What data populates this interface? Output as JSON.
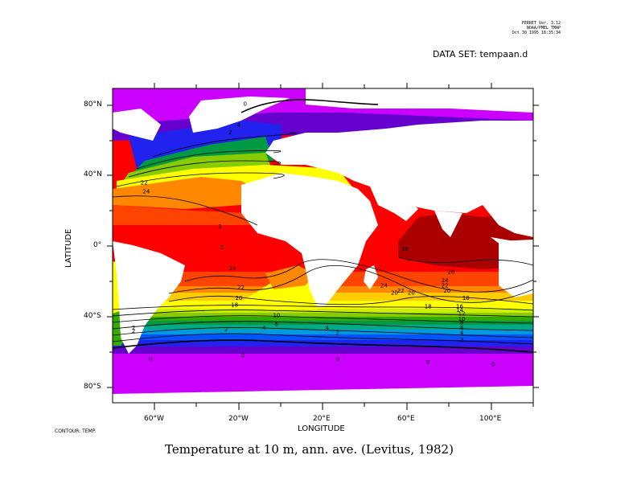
{
  "header": {
    "line1": "FERRET Ver. 3.12",
    "line2": "NOAA/PMEL TMAP",
    "line3": "Oct 30 1995 18:35:34"
  },
  "dataset_label": "DATA SET: tempaan.d",
  "axes": {
    "ylabel": "LATITUDE",
    "xlabel": "LONGITUDE",
    "yticks": [
      "80°N",
      "40°N",
      "0°",
      "40°S",
      "80°S"
    ],
    "xticks": [
      "60°W",
      "20°W",
      "20°E",
      "60°E",
      "100°E"
    ]
  },
  "contour_note": "CONTOUR: TEMP.",
  "title": "Temperature at 10 m, ann. ave. (Levitus, 1982)",
  "map": {
    "lon_range": [
      -80,
      120
    ],
    "lat_range": [
      -90,
      90
    ],
    "land_color": "#ffffff",
    "color_scale": [
      "#cc00ff",
      "#6600cc",
      "#2222ee",
      "#0055ff",
      "#0099dd",
      "#00aa88",
      "#009944",
      "#33aa00",
      "#88cc00",
      "#ccee00",
      "#ffff00",
      "#ffcc00",
      "#ff8800",
      "#ff4400",
      "#ff0000",
      "#aa0000"
    ]
  },
  "contour_labels": [
    {
      "text": "0",
      "lon": -62,
      "lat": -66
    },
    {
      "text": "0",
      "lon": -18,
      "lat": -64
    },
    {
      "text": "0",
      "lon": 27,
      "lat": -66
    },
    {
      "text": "0",
      "lon": 70,
      "lat": -68
    },
    {
      "text": "0",
      "lon": 101,
      "lat": -69
    },
    {
      "text": "0",
      "lon": -17,
      "lat": 80
    },
    {
      "text": "4",
      "lon": -20,
      "lat": 68
    },
    {
      "text": "2",
      "lon": -24,
      "lat": 64
    },
    {
      "text": "22",
      "lon": -65,
      "lat": 35
    },
    {
      "text": "24",
      "lon": -64,
      "lat": 30
    },
    {
      "text": "2",
      "lon": -29,
      "lat": 10
    },
    {
      "text": "2",
      "lon": -28,
      "lat": -2
    },
    {
      "text": "24",
      "lon": -23,
      "lat": -14
    },
    {
      "text": "22",
      "lon": -19,
      "lat": -25
    },
    {
      "text": "20",
      "lon": -20,
      "lat": -31
    },
    {
      "text": "18",
      "lon": -22,
      "lat": -35
    },
    {
      "text": "10",
      "lon": -2,
      "lat": -41
    },
    {
      "text": "6",
      "lon": -2,
      "lat": -46
    },
    {
      "text": "4",
      "lon": -8,
      "lat": -48
    },
    {
      "text": "2",
      "lon": -26,
      "lat": -49
    },
    {
      "text": "2",
      "lon": -70,
      "lat": -48
    },
    {
      "text": "2",
      "lon": -70,
      "lat": -50
    },
    {
      "text": "20",
      "lon": 54,
      "lat": -28
    },
    {
      "text": "20",
      "lon": 62,
      "lat": -28
    },
    {
      "text": "22",
      "lon": 57,
      "lat": -27
    },
    {
      "text": "24",
      "lon": 49,
      "lat": -24
    },
    {
      "text": "26",
      "lon": 81,
      "lat": -16
    },
    {
      "text": "24",
      "lon": 78,
      "lat": -21
    },
    {
      "text": "22",
      "lon": 78,
      "lat": -24
    },
    {
      "text": "20",
      "lon": 79,
      "lat": -27
    },
    {
      "text": "18",
      "lon": 70,
      "lat": -36
    },
    {
      "text": "18",
      "lon": 88,
      "lat": -31
    },
    {
      "text": "16",
      "lon": 85,
      "lat": -36
    },
    {
      "text": "14",
      "lon": 85,
      "lat": -38
    },
    {
      "text": "12",
      "lon": 86,
      "lat": -40
    },
    {
      "text": "10",
      "lon": 86,
      "lat": -43
    },
    {
      "text": "8",
      "lon": 86,
      "lat": -45
    },
    {
      "text": "6",
      "lon": 86,
      "lat": -48
    },
    {
      "text": "4",
      "lon": 86,
      "lat": -51
    },
    {
      "text": "2",
      "lon": 86,
      "lat": -55
    },
    {
      "text": "26",
      "lon": 59,
      "lat": -3
    },
    {
      "text": "4",
      "lon": 22,
      "lat": -48
    },
    {
      "text": "2",
      "lon": 27,
      "lat": -51
    }
  ]
}
